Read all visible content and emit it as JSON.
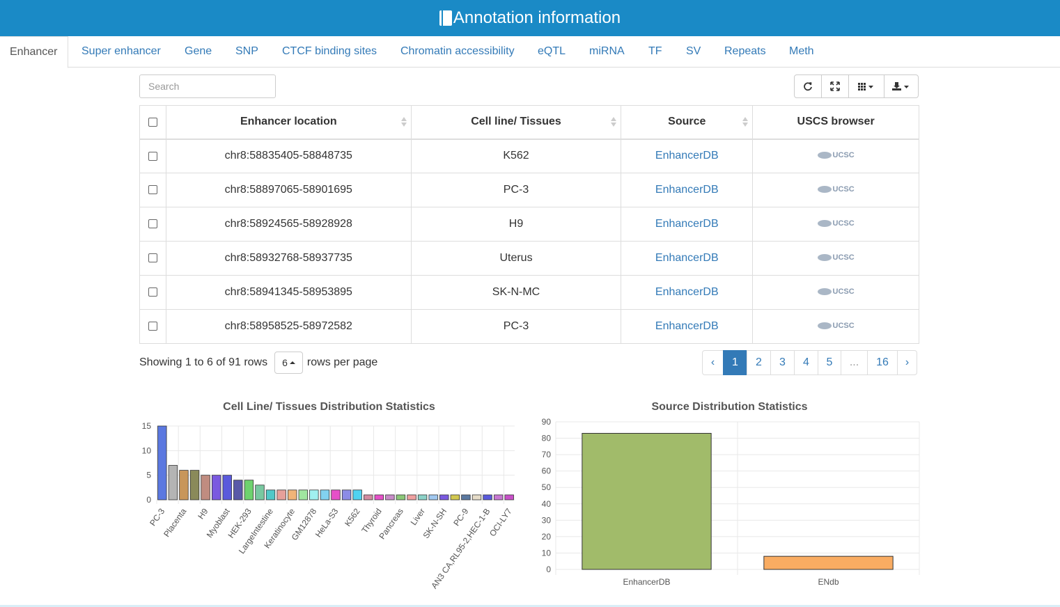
{
  "header": {
    "title": "Annotation information",
    "icon": "book-icon"
  },
  "tabs": [
    {
      "label": "Enhancer",
      "active": true
    },
    {
      "label": "Super enhancer"
    },
    {
      "label": "Gene"
    },
    {
      "label": "SNP"
    },
    {
      "label": "CTCF binding sites"
    },
    {
      "label": "Chromatin accessibility"
    },
    {
      "label": "eQTL"
    },
    {
      "label": "miRNA"
    },
    {
      "label": "TF"
    },
    {
      "label": "SV"
    },
    {
      "label": "Repeats"
    },
    {
      "label": "Meth"
    }
  ],
  "search": {
    "placeholder": "Search",
    "value": ""
  },
  "toolbar": {
    "buttons": [
      "refresh-icon",
      "fullscreen-icon",
      "columns-icon",
      "export-icon"
    ]
  },
  "table": {
    "headers": [
      "Enhancer location",
      "Cell line/ Tissues",
      "Source",
      "USCS browser"
    ],
    "rows": [
      {
        "location": "chr8:58835405-58848735",
        "cell": "K562",
        "source": "EnhancerDB",
        "browser": "UCSC"
      },
      {
        "location": "chr8:58897065-58901695",
        "cell": "PC-3",
        "source": "EnhancerDB",
        "browser": "UCSC"
      },
      {
        "location": "chr8:58924565-58928928",
        "cell": "H9",
        "source": "EnhancerDB",
        "browser": "UCSC"
      },
      {
        "location": "chr8:58932768-58937735",
        "cell": "Uterus",
        "source": "EnhancerDB",
        "browser": "UCSC"
      },
      {
        "location": "chr8:58941345-58953895",
        "cell": "SK-N-MC",
        "source": "EnhancerDB",
        "browser": "UCSC"
      },
      {
        "location": "chr8:58958525-58972582",
        "cell": "PC-3",
        "source": "EnhancerDB",
        "browser": "UCSC"
      }
    ]
  },
  "pagination": {
    "showing_text": "Showing 1 to 6 of 91 rows",
    "page_size": "6",
    "rows_per_page_text": "rows per page",
    "prev": "‹",
    "next": "›",
    "pages": [
      "1",
      "2",
      "3",
      "4",
      "5",
      "...",
      "16"
    ],
    "current": "1"
  },
  "chart_data": [
    {
      "type": "bar",
      "title": "Cell Line/ Tissues Distribution Statistics",
      "ylim": [
        0,
        15
      ],
      "yticks": [
        0,
        5,
        10,
        15
      ],
      "categories": [
        "PC-3",
        "",
        "Placenta",
        "",
        "H9",
        "",
        "Myoblast",
        "",
        "HEK-293",
        "",
        "LargeIntestine",
        "",
        "Keratinocyte",
        "",
        "GM12878",
        "",
        "HeLa-S3",
        "",
        "K562",
        "",
        "Thyroid",
        "",
        "Pancreas",
        "",
        "Liver",
        "",
        "SK-N-SH",
        "",
        "PC-9",
        "",
        "AN3 CA,RL95-2,HEC-1-B",
        "",
        "OCI-LY7"
      ],
      "values": [
        15,
        7,
        6,
        6,
        5,
        5,
        5,
        4,
        4,
        3,
        2,
        2,
        2,
        2,
        2,
        2,
        2,
        2,
        2,
        1,
        1,
        1,
        1,
        1,
        1,
        1,
        1,
        1,
        1,
        1,
        1,
        1,
        1
      ],
      "colors": [
        "#5b78e0",
        "#b4b4b4",
        "#c8965a",
        "#8a8a5a",
        "#c08c80",
        "#7a5ae0",
        "#5a5adc",
        "#5a5aa8",
        "#6ed26e",
        "#78c8a0",
        "#50c8c8",
        "#e6a09a",
        "#f0b478",
        "#a0e6a0",
        "#a0f0f0",
        "#82d2f0",
        "#e650c8",
        "#8c8ce6",
        "#50d2f0",
        "#d28ca0",
        "#e650c8",
        "#c88cc8",
        "#8cc878",
        "#f0a0a0",
        "#8cd2c8",
        "#a0c8f0",
        "#7a5ae0",
        "#d2c850",
        "#5a78a0",
        "#e6dcc8",
        "#5a5adc",
        "#c878d2",
        "#c850c8"
      ]
    },
    {
      "type": "bar",
      "title": "Source Distribution Statistics",
      "categories": [
        "EnhancerDB",
        "ENdb"
      ],
      "values": [
        83,
        8
      ],
      "ylim": [
        0,
        90
      ],
      "yticks": [
        0,
        10,
        20,
        30,
        40,
        50,
        60,
        70,
        80,
        90
      ],
      "colors": [
        "#a1bb6a",
        "#f9ac62"
      ]
    }
  ]
}
